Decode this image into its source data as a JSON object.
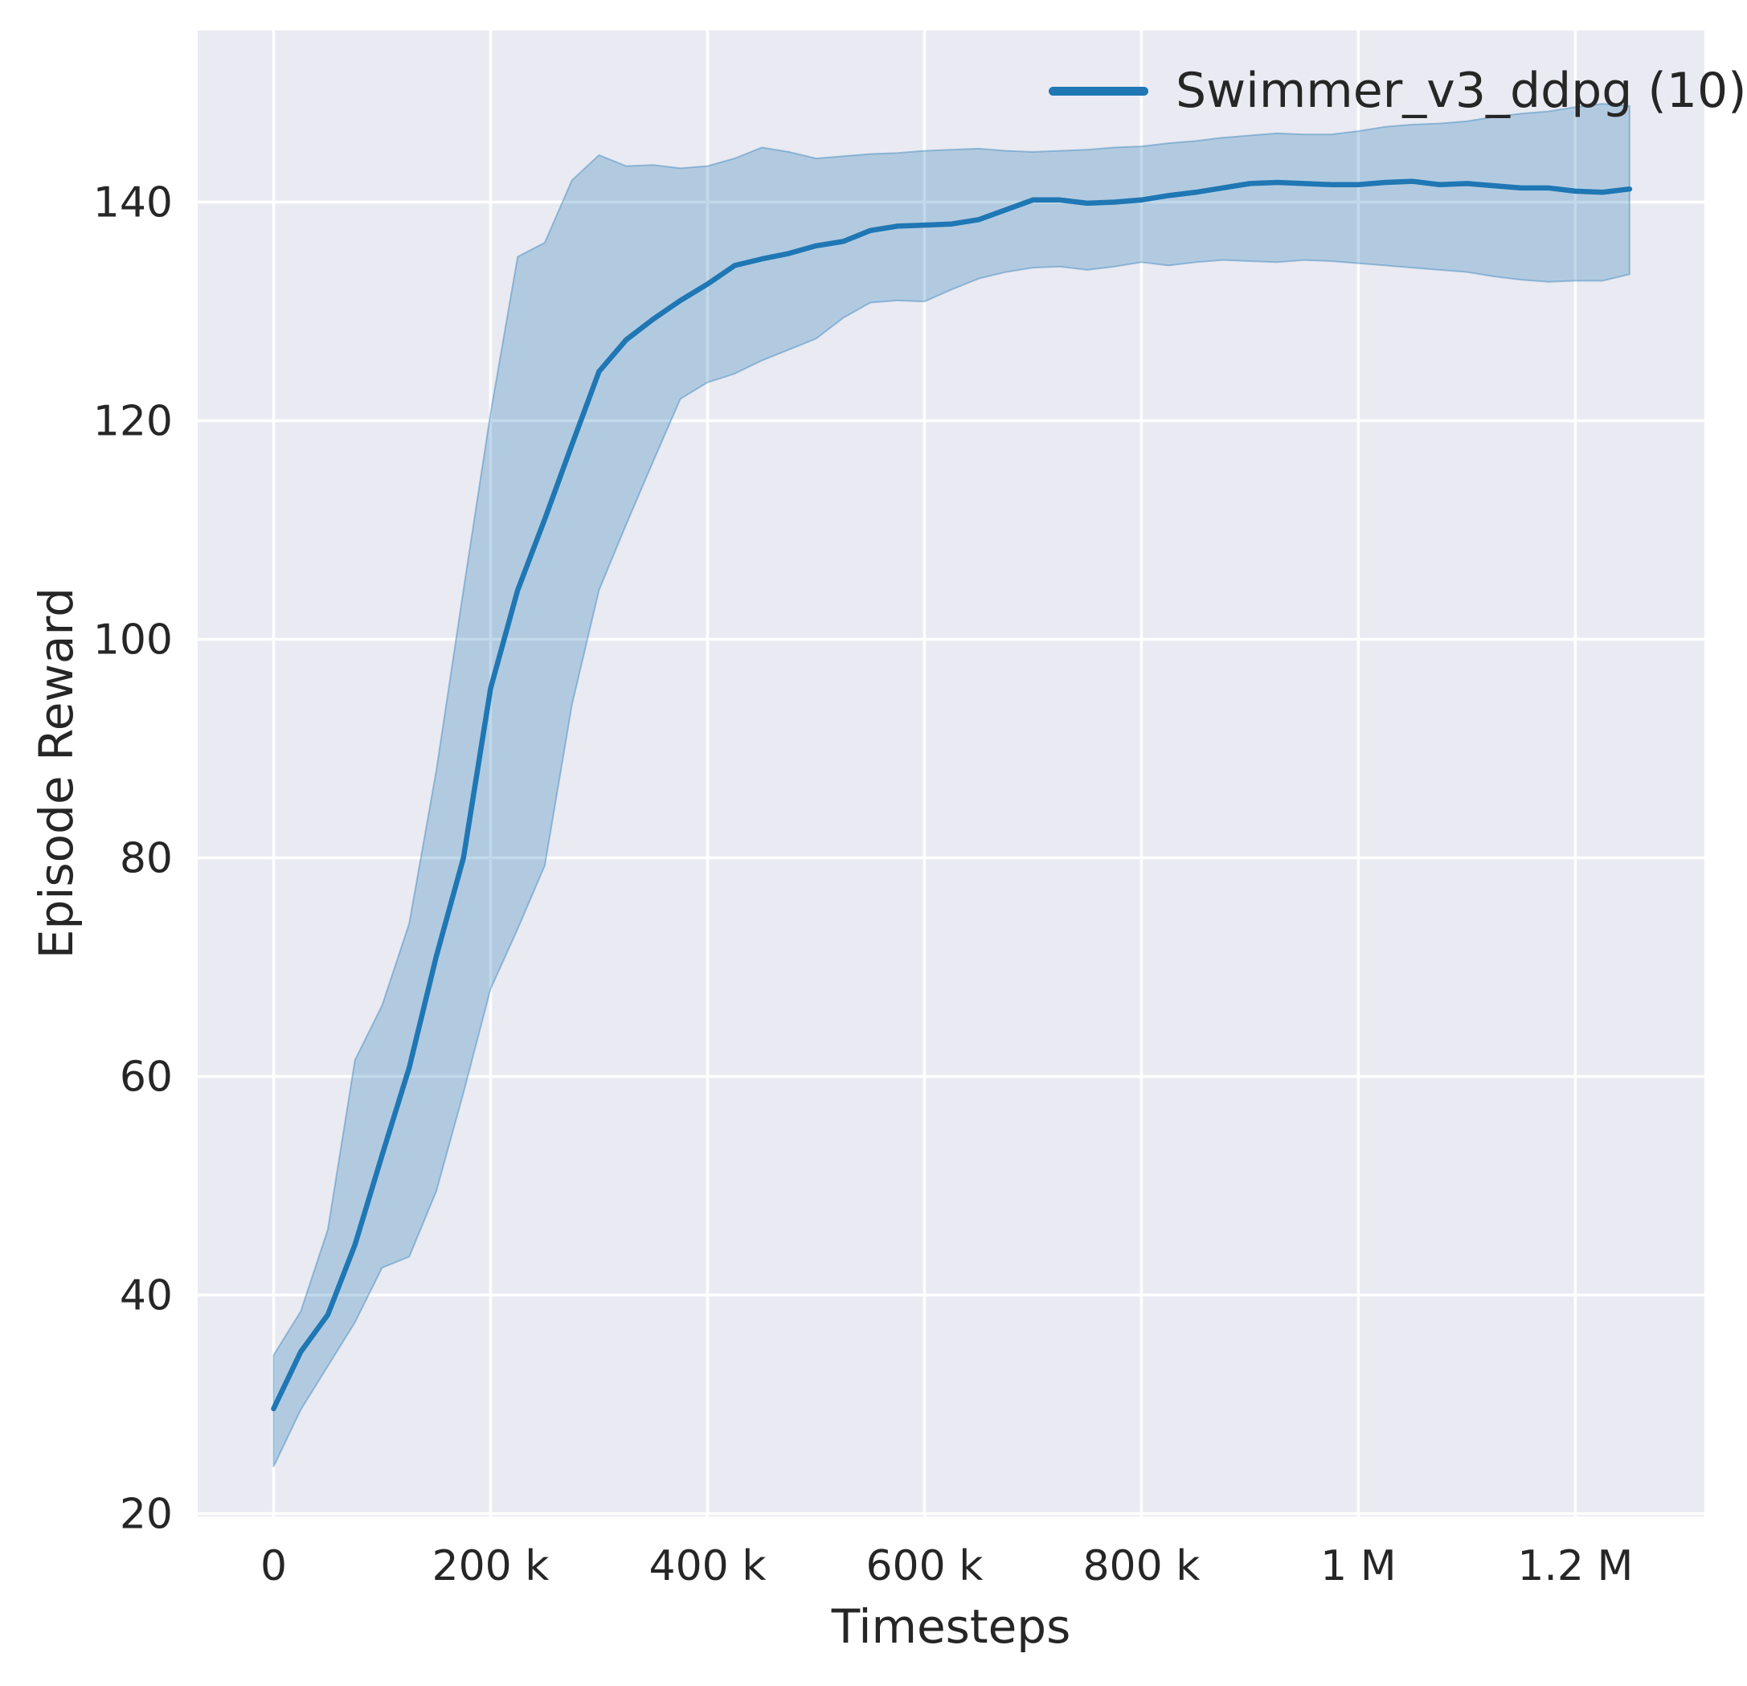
{
  "figure": {
    "background": "#ffffff",
    "plot_background": "#eaeaf2",
    "grid_color": "#ffffff",
    "text_color": "#262626",
    "line_color": "#1f77b4",
    "band_fill_opacity": 0.28,
    "band_edge_opacity": 0.38
  },
  "axes": {
    "xlabel": "Timesteps",
    "ylabel": "Episode Reward",
    "x_ticks": [
      {
        "value": 0,
        "label": "0"
      },
      {
        "value": 200,
        "label": "200 k"
      },
      {
        "value": 400,
        "label": "400 k"
      },
      {
        "value": 600,
        "label": "600 k"
      },
      {
        "value": 800,
        "label": "800 k"
      },
      {
        "value": 1000,
        "label": "1 M"
      },
      {
        "value": 1200,
        "label": "1.2 M"
      }
    ],
    "y_ticks": [
      {
        "value": 140,
        "label": "140"
      },
      {
        "value": 120,
        "label": "120"
      },
      {
        "value": 100,
        "label": "100"
      },
      {
        "value": 80,
        "label": "80"
      },
      {
        "value": 60,
        "label": "60"
      },
      {
        "value": 40,
        "label": "40"
      },
      {
        "value": 20,
        "label": "20"
      }
    ]
  },
  "legend": {
    "label": "Swimmer_v3_ddpg (10)"
  },
  "chart_data": {
    "type": "line",
    "title": "",
    "xlabel": "Timesteps",
    "ylabel": "Episode Reward",
    "x_unit": "thousand timesteps",
    "grid": true,
    "legend_position": "upper right",
    "xlim": [
      -70,
      1319
    ],
    "ylim": [
      19.74,
      155.7
    ],
    "x": [
      0,
      25,
      50,
      75,
      100,
      125,
      150,
      175,
      200,
      225,
      250,
      275,
      300,
      325,
      350,
      375,
      400,
      425,
      450,
      475,
      500,
      525,
      550,
      575,
      600,
      625,
      650,
      675,
      700,
      725,
      750,
      775,
      800,
      825,
      850,
      875,
      900,
      925,
      950,
      975,
      1000,
      1025,
      1050,
      1075,
      1100,
      1125,
      1150,
      1175,
      1200,
      1225,
      1250
    ],
    "series": [
      {
        "name": "Swimmer_v3_ddpg (10)",
        "mean": [
          29.6,
          34.8,
          38.2,
          44.6,
          52.8,
          60.8,
          71.0,
          80.0,
          95.5,
          104.5,
          111.0,
          117.8,
          124.5,
          127.4,
          129.3,
          131.0,
          132.5,
          134.2,
          134.8,
          135.3,
          136.0,
          136.4,
          137.4,
          137.8,
          137.9,
          138.0,
          138.4,
          139.3,
          140.2,
          140.2,
          139.9,
          140.0,
          140.2,
          140.6,
          140.9,
          141.3,
          141.7,
          141.8,
          141.7,
          141.6,
          141.6,
          141.8,
          141.9,
          141.6,
          141.7,
          141.5,
          141.3,
          141.3,
          141.0,
          140.9,
          141.2
        ],
        "band_lower": [
          24.3,
          29.5,
          33.5,
          37.5,
          42.5,
          43.5,
          49.5,
          58.5,
          68.0,
          73.5,
          79.3,
          94.0,
          104.5,
          110.5,
          116.3,
          122.0,
          123.5,
          124.3,
          125.5,
          126.5,
          127.5,
          129.4,
          130.8,
          131.0,
          130.9,
          132.0,
          133.0,
          133.6,
          134.0,
          134.1,
          133.8,
          134.1,
          134.5,
          134.2,
          134.5,
          134.7,
          134.6,
          134.5,
          134.7,
          134.6,
          134.4,
          134.2,
          134.0,
          133.8,
          133.6,
          133.2,
          132.9,
          132.7,
          132.8,
          132.8,
          133.4
        ],
        "band_upper": [
          34.5,
          38.5,
          46.0,
          61.5,
          66.5,
          74.0,
          88.0,
          104.5,
          120.7,
          135.0,
          136.3,
          142.0,
          144.3,
          143.3,
          143.4,
          143.1,
          143.3,
          144.0,
          145.0,
          144.6,
          144.0,
          144.2,
          144.4,
          144.5,
          144.7,
          144.8,
          144.9,
          144.7,
          144.6,
          144.7,
          144.8,
          145.0,
          145.1,
          145.4,
          145.6,
          145.9,
          146.1,
          146.3,
          146.2,
          146.2,
          146.5,
          146.9,
          147.1,
          147.2,
          147.4,
          147.8,
          148.1,
          148.3,
          148.7,
          149.0,
          148.8
        ]
      }
    ]
  }
}
